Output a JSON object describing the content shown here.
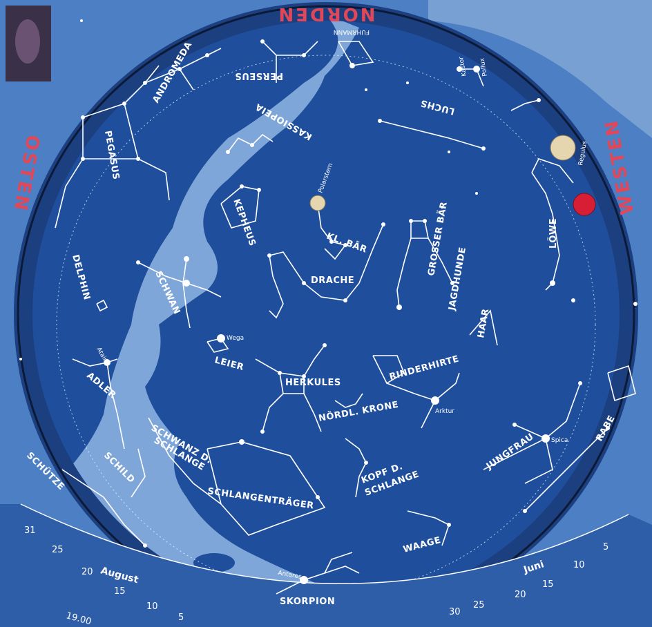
{
  "directions": {
    "north": "NORDEN",
    "west": "WESTEN",
    "east": "OSTEN"
  },
  "colors": {
    "sky": "#1f4f9c",
    "milky_way": "#7fa6d9",
    "rim": "#1c3f80",
    "direction_red": "#e0485a",
    "star": "#ffffff",
    "planet_red": "#d81e35",
    "planet_tan": "#e6d6b0"
  },
  "constellations": {
    "pegasus": "PEGASUS",
    "andromeda": "ANDROMEDA",
    "perseus": "PERSEUS",
    "fuhrmann": "FUHRMANN",
    "kassiopeia": "KASSIOPEIA",
    "kepheus": "KEPHEUS",
    "luchs": "LUCHS",
    "kl_baer": "KL. BÄR",
    "grosser_baer": "GROSSER BÄR",
    "drache": "DRACHE",
    "loewe": "LÖWE",
    "delphin": "DELPHIN",
    "schwan": "SCHWAN",
    "leier": "LEIER",
    "herkules": "HERKULES",
    "rinderhirte": "RINDERHIRTE",
    "jagdhunde": "JAGDHUNDE",
    "haar": "HAAR",
    "adler": "ADLER",
    "noerdl_krone": "NÖRDL. KRONE",
    "schwanz_1": "SCHWANZ D.",
    "schwanz_2": "SCHLANGE",
    "schild": "SCHILD",
    "schlangentraeger": "SCHLANGENTRÄGER",
    "kopf_1": "KOPF D.",
    "kopf_2": "SCHLANGE",
    "jungfrau": "JUNGFRAU",
    "rabe": "RABE",
    "waage": "WAAGE",
    "skorpion": "SKORPION",
    "schuetze": "SCHÜTZE"
  },
  "stars": {
    "polarstern": "Polarstern",
    "wega": "Wega",
    "atair": "Atair",
    "arktur": "Arktur",
    "spica": "Spica",
    "antares": "Antares",
    "kastor": "Kastor",
    "pollux": "Pollux",
    "regulus": "Regulus"
  },
  "scale": {
    "months": {
      "august": "August",
      "juni": "Juni"
    },
    "ticks_left": [
      "31",
      "25",
      "20",
      "15",
      "10",
      "5"
    ],
    "ticks_right": [
      "30",
      "25",
      "20",
      "15",
      "10",
      "5"
    ],
    "time": "19.00"
  }
}
